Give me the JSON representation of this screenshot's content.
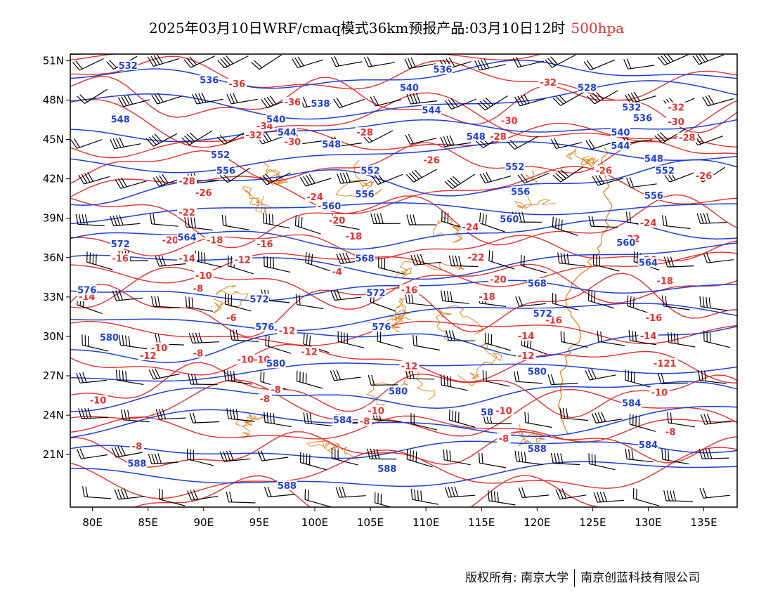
{
  "title": {
    "main": "2025年03月10日WRF/cmaq模式36km预报产品:03月10日12时",
    "level": "500hpa"
  },
  "footer": {
    "copyright": "版权所有: 南京大学",
    "company": "南京创蓝科技有限公司"
  },
  "map": {
    "lon_range": [
      78,
      138
    ],
    "lat_range": [
      17,
      51.5
    ],
    "lon_ticks": [
      "80E",
      "85E",
      "90E",
      "95E",
      "100E",
      "105E",
      "110E",
      "115E",
      "120E",
      "125E",
      "130E",
      "135E"
    ],
    "lat_ticks": [
      "51N",
      "48N",
      "45N",
      "42N",
      "39N",
      "36N",
      "33N",
      "30N",
      "27N",
      "24N",
      "21N"
    ],
    "colors": {
      "height_contours": "#1f3fd8",
      "temperature_contours": "#e53030",
      "wind_barbs": "#000000",
      "coastline_borders": "#e08a2c"
    },
    "height_labels": [
      {
        "text": "532",
        "lon": 83.2,
        "lat": 50.6
      },
      {
        "text": "536",
        "lon": 90.5,
        "lat": 49.5
      },
      {
        "text": "536",
        "lon": 111.5,
        "lat": 50.3
      },
      {
        "text": "528",
        "lon": 124.5,
        "lat": 48.9
      },
      {
        "text": "540",
        "lon": 108.5,
        "lat": 48.9
      },
      {
        "text": "548",
        "lon": 82.5,
        "lat": 46.5
      },
      {
        "text": "538",
        "lon": 100.5,
        "lat": 47.7
      },
      {
        "text": "540",
        "lon": 96.5,
        "lat": 46.5
      },
      {
        "text": "544",
        "lon": 97.5,
        "lat": 45.5
      },
      {
        "text": "544",
        "lon": 110.5,
        "lat": 47.2
      },
      {
        "text": "532",
        "lon": 128.5,
        "lat": 47.4
      },
      {
        "text": "536",
        "lon": 129.5,
        "lat": 46.6
      },
      {
        "text": "540",
        "lon": 127.5,
        "lat": 45.5
      },
      {
        "text": "544",
        "lon": 127.5,
        "lat": 44.5
      },
      {
        "text": "548",
        "lon": 114.5,
        "lat": 45.2
      },
      {
        "text": "548",
        "lon": 101.5,
        "lat": 44.6
      },
      {
        "text": "548",
        "lon": 130.5,
        "lat": 43.5
      },
      {
        "text": "552",
        "lon": 91.5,
        "lat": 43.8
      },
      {
        "text": "556",
        "lon": 92.0,
        "lat": 42.6
      },
      {
        "text": "552",
        "lon": 105.0,
        "lat": 42.6
      },
      {
        "text": "552",
        "lon": 118.0,
        "lat": 42.9
      },
      {
        "text": "552",
        "lon": 131.5,
        "lat": 42.6
      },
      {
        "text": "556",
        "lon": 118.5,
        "lat": 41.0
      },
      {
        "text": "556",
        "lon": 104.5,
        "lat": 40.8
      },
      {
        "text": "556",
        "lon": 130.5,
        "lat": 40.7
      },
      {
        "text": "560",
        "lon": 101.5,
        "lat": 39.9
      },
      {
        "text": "560",
        "lon": 117.5,
        "lat": 38.9
      },
      {
        "text": "560",
        "lon": 128.0,
        "lat": 37.1
      },
      {
        "text": "564",
        "lon": 88.5,
        "lat": 37.5
      },
      {
        "text": "564",
        "lon": 130.0,
        "lat": 35.6
      },
      {
        "text": "568",
        "lon": 104.5,
        "lat": 35.9
      },
      {
        "text": "568",
        "lon": 120.0,
        "lat": 34.0
      },
      {
        "text": "572",
        "lon": 82.5,
        "lat": 37.0
      },
      {
        "text": "572",
        "lon": 95.0,
        "lat": 32.8
      },
      {
        "text": "572",
        "lon": 105.5,
        "lat": 33.3
      },
      {
        "text": "572",
        "lon": 120.5,
        "lat": 31.7
      },
      {
        "text": "576",
        "lon": 79.5,
        "lat": 33.5
      },
      {
        "text": "576",
        "lon": 95.5,
        "lat": 30.7
      },
      {
        "text": "576",
        "lon": 106.0,
        "lat": 30.7
      },
      {
        "text": "580",
        "lon": 81.5,
        "lat": 29.9
      },
      {
        "text": "580",
        "lon": 96.5,
        "lat": 27.9
      },
      {
        "text": "580",
        "lon": 107.5,
        "lat": 25.8
      },
      {
        "text": "580",
        "lon": 120.0,
        "lat": 27.3
      },
      {
        "text": "584",
        "lon": 128.5,
        "lat": 24.9
      },
      {
        "text": "584",
        "lon": 130.0,
        "lat": 21.7
      },
      {
        "text": "58",
        "lon": 115.5,
        "lat": 24.2
      },
      {
        "text": "584",
        "lon": 102.5,
        "lat": 23.6
      },
      {
        "text": "588",
        "lon": 84.0,
        "lat": 20.3
      },
      {
        "text": "588",
        "lon": 97.5,
        "lat": 18.6
      },
      {
        "text": "588",
        "lon": 106.5,
        "lat": 19.9
      },
      {
        "text": "588",
        "lon": 120.0,
        "lat": 21.4
      }
    ],
    "temperature_labels": [
      {
        "text": "-32",
        "lon": 109.5,
        "lat": 51.1
      },
      {
        "text": "-36",
        "lon": 93.0,
        "lat": 49.2
      },
      {
        "text": "-32",
        "lon": 121.0,
        "lat": 49.3
      },
      {
        "text": "-36",
        "lon": 98.0,
        "lat": 47.8
      },
      {
        "text": "-32",
        "lon": 132.5,
        "lat": 47.4
      },
      {
        "text": "-34",
        "lon": 95.5,
        "lat": 46.0
      },
      {
        "text": "-30",
        "lon": 117.5,
        "lat": 46.4
      },
      {
        "text": "-32",
        "lon": 94.5,
        "lat": 45.3
      },
      {
        "text": "-30",
        "lon": 132.5,
        "lat": 46.3
      },
      {
        "text": "-28",
        "lon": 104.5,
        "lat": 45.5
      },
      {
        "text": "-30",
        "lon": 98.0,
        "lat": 44.8
      },
      {
        "text": "-28",
        "lon": 116.5,
        "lat": 45.2
      },
      {
        "text": "-28",
        "lon": 133.5,
        "lat": 45.1
      },
      {
        "text": "-26",
        "lon": 110.5,
        "lat": 43.4
      },
      {
        "text": "-26",
        "lon": 126.0,
        "lat": 42.6
      },
      {
        "text": "-28",
        "lon": 88.5,
        "lat": 41.8
      },
      {
        "text": "-26",
        "lon": 135.0,
        "lat": 42.2
      },
      {
        "text": "-26",
        "lon": 90.0,
        "lat": 40.9
      },
      {
        "text": "-24",
        "lon": 100.0,
        "lat": 40.6
      },
      {
        "text": "-22",
        "lon": 101.0,
        "lat": 39.9
      },
      {
        "text": "-22",
        "lon": 88.5,
        "lat": 39.4
      },
      {
        "text": "-20",
        "lon": 102.0,
        "lat": 38.8
      },
      {
        "text": "-24",
        "lon": 114.0,
        "lat": 38.3
      },
      {
        "text": "-24",
        "lon": 130.0,
        "lat": 38.6
      },
      {
        "text": "-18",
        "lon": 103.5,
        "lat": 37.6
      },
      {
        "text": "-22",
        "lon": 128.5,
        "lat": 37.4
      },
      {
        "text": "-20",
        "lon": 87.0,
        "lat": 37.3
      },
      {
        "text": "-18",
        "lon": 91.0,
        "lat": 37.3
      },
      {
        "text": "-16",
        "lon": 95.5,
        "lat": 37.0
      },
      {
        "text": "-22",
        "lon": 114.5,
        "lat": 36.0
      },
      {
        "text": "-26",
        "lon": 130.0,
        "lat": 35.8
      },
      {
        "text": "-16",
        "lon": 82.5,
        "lat": 35.9
      },
      {
        "text": "-14",
        "lon": 88.5,
        "lat": 35.9
      },
      {
        "text": "-12",
        "lon": 93.5,
        "lat": 35.8
      },
      {
        "text": "-4",
        "lon": 102.0,
        "lat": 34.9
      },
      {
        "text": "-10",
        "lon": 90.0,
        "lat": 34.6
      },
      {
        "text": "-20",
        "lon": 116.5,
        "lat": 34.3
      },
      {
        "text": "-18",
        "lon": 131.5,
        "lat": 34.2
      },
      {
        "text": "-16",
        "lon": 108.5,
        "lat": 33.5
      },
      {
        "text": "-8",
        "lon": 89.5,
        "lat": 33.6
      },
      {
        "text": "-14",
        "lon": 79.5,
        "lat": 33.0
      },
      {
        "text": "-18",
        "lon": 115.5,
        "lat": 33.0
      },
      {
        "text": "-6",
        "lon": 92.5,
        "lat": 31.4
      },
      {
        "text": "-16",
        "lon": 121.5,
        "lat": 31.2
      },
      {
        "text": "-16",
        "lon": 130.5,
        "lat": 31.4
      },
      {
        "text": "-12",
        "lon": 97.5,
        "lat": 30.4
      },
      {
        "text": "-14",
        "lon": 119.0,
        "lat": 30.0
      },
      {
        "text": "-14",
        "lon": 130.0,
        "lat": 30.0
      },
      {
        "text": "-10",
        "lon": 86.0,
        "lat": 29.1
      },
      {
        "text": "-8",
        "lon": 89.5,
        "lat": 28.7
      },
      {
        "text": "-12",
        "lon": 85.0,
        "lat": 28.5
      },
      {
        "text": "-12",
        "lon": 99.5,
        "lat": 28.8
      },
      {
        "text": "-12",
        "lon": 119.0,
        "lat": 28.5
      },
      {
        "text": "-10-10",
        "lon": 94.5,
        "lat": 28.2
      },
      {
        "text": "-12",
        "lon": 108.5,
        "lat": 27.7
      },
      {
        "text": "-121",
        "lon": 131.5,
        "lat": 27.9
      },
      {
        "text": "-8",
        "lon": 96.5,
        "lat": 25.9
      },
      {
        "text": "-8",
        "lon": 95.5,
        "lat": 25.2
      },
      {
        "text": "-10",
        "lon": 131.0,
        "lat": 25.7
      },
      {
        "text": "-10",
        "lon": 80.5,
        "lat": 25.1
      },
      {
        "text": "-8",
        "lon": 104.5,
        "lat": 23.5
      },
      {
        "text": "-10",
        "lon": 105.5,
        "lat": 24.3
      },
      {
        "text": "-10",
        "lon": 117.0,
        "lat": 24.3
      },
      {
        "text": "-8",
        "lon": 84.0,
        "lat": 21.6
      },
      {
        "text": "-8",
        "lon": 117.0,
        "lat": 22.2
      },
      {
        "text": "-8",
        "lon": 132.0,
        "lat": 22.7
      }
    ]
  }
}
